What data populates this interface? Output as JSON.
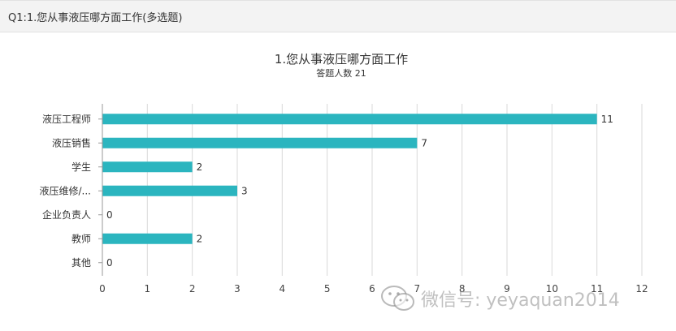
{
  "header": {
    "title": "Q1:1.您从事液压哪方面工作(多选题)"
  },
  "watermark": {
    "text": "微信号: yeyaquan2014",
    "icon": "wechat-icon"
  },
  "colors": {
    "bar": "#2bb5bf",
    "grid": "#d9d9d9",
    "axis": "#999999"
  },
  "chart_data": {
    "type": "bar",
    "orientation": "horizontal",
    "title": "1.您从事液压哪方面工作",
    "subtitle": "答题人数 21",
    "categories": [
      "液压工程师",
      "液压销售",
      "学生",
      "液压维修/...",
      "企业负责人",
      "教师",
      "其他"
    ],
    "values": [
      11,
      7,
      2,
      3,
      0,
      2,
      0
    ],
    "xlim": [
      0,
      12
    ],
    "xticks": [
      "0",
      "1",
      "2",
      "3",
      "4",
      "5",
      "6",
      "7",
      "8",
      "9",
      "10",
      "11",
      "12"
    ],
    "grid": true,
    "data_labels": true
  }
}
